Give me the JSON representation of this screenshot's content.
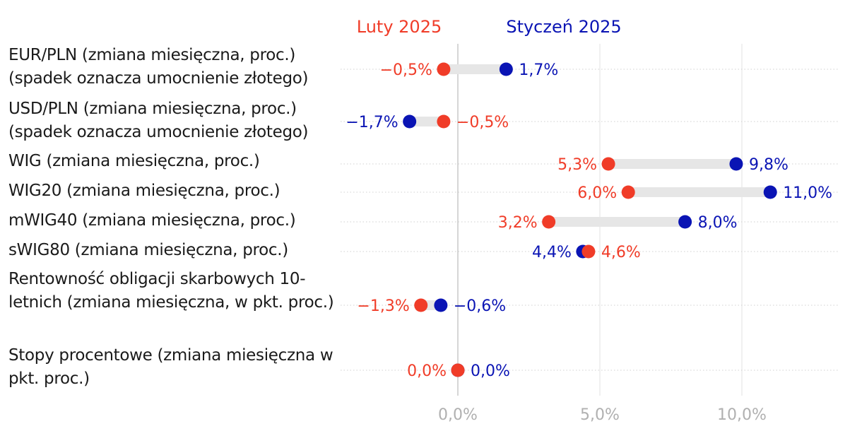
{
  "chart_data": {
    "type": "dumbbell",
    "series": [
      {
        "name": "Luty 2025",
        "color": "#f03c28",
        "values": [
          -0.5,
          -0.5,
          5.3,
          6.0,
          3.2,
          4.6,
          -1.3,
          0.0
        ],
        "labels": [
          "−0,5%",
          "−0,5%",
          "5,3%",
          "6,0%",
          "3,2%",
          "4,6%",
          "−1,3%",
          "0,0%"
        ]
      },
      {
        "name": "Styczeń 2025",
        "color": "#0a14b4",
        "values": [
          1.7,
          -1.7,
          9.8,
          11.0,
          8.0,
          4.4,
          -0.6,
          0.0
        ],
        "labels": [
          "1,7%",
          "−1,7%",
          "9,8%",
          "11,0%",
          "8,0%",
          "4,4%",
          "−0,6%",
          "0,0%"
        ]
      }
    ],
    "categories": [
      "EUR/PLN (zmiana miesięczna, proc.) (spadek oznacza umocnienie złotego)",
      "USD/PLN (zmiana miesięczna, proc.) (spadek oznacza umocnienie złotego)",
      "WIG (zmiana miesięczna, proc.)",
      "WIG20 (zmiana miesięczna, proc.)",
      "mWIG40 (zmiana miesięczna, proc.)",
      "sWIG80 (zmiana miesięczna, proc.)",
      "Rentowność obligacji skarbowych 10-letnich (zmiana miesięczna, w pkt. proc.)",
      "Stopy procentowe (zmiana miesięczna w pkt. proc.)"
    ],
    "xlim": [
      -4.2,
      13.6
    ],
    "x_ticks": [
      0,
      5,
      10
    ],
    "x_tick_labels": [
      "0,0%",
      "5,0%",
      "10,0%"
    ],
    "connector_color": "#e6e6e6",
    "grid": true
  }
}
